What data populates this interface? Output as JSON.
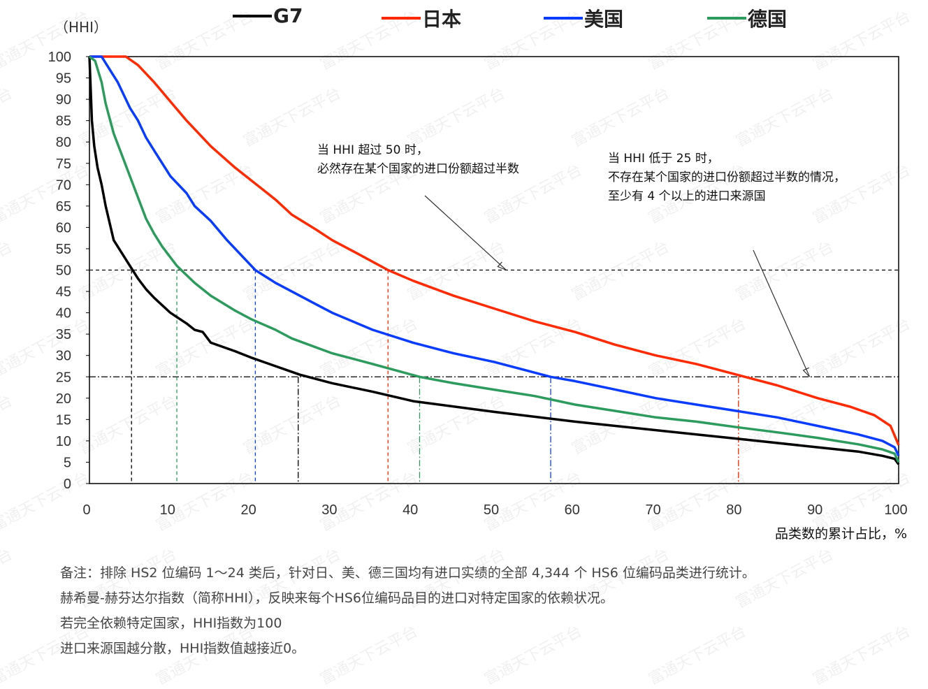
{
  "chart_data": {
    "type": "line",
    "ylabel": "（HHI）",
    "xlabel": "品类数的累计占比，%",
    "xlim": [
      0,
      100
    ],
    "ylim": [
      0,
      100
    ],
    "xticks": [
      0,
      10,
      20,
      30,
      40,
      50,
      60,
      70,
      80,
      90,
      100
    ],
    "yticks": [
      0,
      5,
      10,
      15,
      20,
      25,
      30,
      35,
      40,
      45,
      50,
      55,
      60,
      65,
      70,
      75,
      80,
      85,
      90,
      95,
      100
    ],
    "grid": false,
    "legend_position": "top",
    "series": [
      {
        "name": "G7",
        "color": "#000000",
        "x": [
          0,
          0.3,
          0.6,
          1,
          1.5,
          2,
          3,
          4,
          5,
          6,
          7,
          8,
          10,
          12,
          13,
          14,
          15,
          18,
          20,
          23,
          26,
          30,
          35,
          40,
          50,
          60,
          70,
          80,
          90,
          95,
          98,
          99.5,
          100
        ],
        "y": [
          100,
          85,
          79,
          74,
          70,
          65,
          57,
          54,
          51,
          48,
          45.5,
          43.5,
          40,
          37.5,
          36,
          35.5,
          33,
          31,
          29.5,
          27.5,
          25.5,
          23.5,
          21.5,
          19.3,
          16.8,
          14.5,
          12.5,
          10.5,
          8.5,
          7.5,
          6.5,
          5.8,
          4.5
        ]
      },
      {
        "name": "日本",
        "color": "#ff2a00",
        "x": [
          0,
          4.5,
          6,
          8,
          10,
          12,
          15,
          18,
          20,
          23,
          25,
          28,
          30,
          33,
          36.9,
          40,
          45,
          50,
          55,
          60,
          65,
          70,
          75,
          80,
          85,
          90,
          94,
          97,
          99,
          100
        ],
        "y": [
          100,
          100,
          98,
          94,
          89.5,
          85,
          79,
          74,
          71,
          66.5,
          63,
          59.5,
          57,
          54,
          50,
          47.5,
          44,
          41,
          38,
          35.5,
          32.5,
          30,
          28,
          25.5,
          23,
          20,
          18,
          16,
          13.5,
          9
        ]
      },
      {
        "name": "美国",
        "color": "#0a3cff",
        "x": [
          0,
          1.5,
          2.5,
          3.5,
          5,
          6,
          7,
          8,
          10,
          12,
          13,
          15,
          17,
          20.5,
          23,
          25,
          28,
          30,
          35,
          40,
          45,
          50,
          57,
          60,
          65,
          70,
          75,
          80,
          85,
          90,
          95,
          98,
          99.5,
          100
        ],
        "y": [
          100,
          100,
          97,
          94,
          88,
          85,
          81,
          78,
          72,
          68,
          65,
          61.5,
          57,
          50,
          47,
          45,
          42,
          40,
          36,
          33,
          30.5,
          28.5,
          25,
          24,
          22,
          20,
          18.5,
          17,
          15.5,
          13.5,
          11.5,
          10,
          8.5,
          6.5
        ]
      },
      {
        "name": "德国",
        "color": "#2e9b5e",
        "x": [
          0,
          0.7,
          1.5,
          2,
          3,
          4,
          5,
          6,
          7,
          8,
          9,
          10.8,
          13,
          15,
          18,
          20,
          23,
          25,
          30,
          35,
          40.8,
          45,
          50,
          55,
          60,
          65,
          70,
          75,
          80,
          85,
          90,
          95,
          98,
          99.5,
          100
        ],
        "y": [
          100,
          99,
          94,
          89,
          82,
          77,
          72,
          67,
          62,
          58.5,
          55.5,
          51,
          47,
          44,
          40.5,
          38.5,
          36,
          34,
          30.5,
          28,
          25,
          23.5,
          22,
          20.5,
          18.5,
          17,
          15.5,
          14.5,
          13.2,
          12,
          10.7,
          9.2,
          8,
          7,
          5
        ]
      }
    ],
    "reference_lines": [
      {
        "axis": "y",
        "value": 50,
        "style": "dashed"
      },
      {
        "axis": "y",
        "value": 25,
        "style": "dash-dot"
      }
    ],
    "crossing_markers": [
      {
        "series": "G7",
        "x": 5.2,
        "y": 50,
        "style": "dashed"
      },
      {
        "series": "德国",
        "x": 10.8,
        "y": 50,
        "style": "dashed"
      },
      {
        "series": "美国",
        "x": 20.5,
        "y": 50,
        "style": "dashed"
      },
      {
        "series": "日本",
        "x": 36.9,
        "y": 50,
        "style": "dashed"
      },
      {
        "series": "G7",
        "x": 25.8,
        "y": 25,
        "style": "dash-dot"
      },
      {
        "series": "德国",
        "x": 40.8,
        "y": 25,
        "style": "dash-dot"
      },
      {
        "series": "美国",
        "x": 57,
        "y": 25,
        "style": "dash-dot"
      },
      {
        "series": "日本",
        "x": 80.2,
        "y": 25,
        "style": "dash-dot"
      }
    ],
    "annotations": [
      {
        "lines": [
          "当 HHI 超过 50 时，",
          "必然存在某个国家的进口份额超过半数"
        ],
        "arrow_to": {
          "x": 51.5,
          "y": 50
        }
      },
      {
        "lines": [
          "当 HHI 低于 25 时，",
          "不存在某个国家的进口份额超过半数的情况，",
          "至少有 4 个以上的进口来源国"
        ],
        "arrow_to": {
          "x": 89,
          "y": 25
        }
      }
    ]
  },
  "notes": [
    "备注：排除 HS2 位编码 1～24 类后，针对日、美、德三国均有进口实绩的全部 4,344 个 HS6 位编码品类进行统计。",
    "赫希曼-赫芬达尔指数（简称HHI），反映来每个HS6位编码品目的进口对特定国家的依赖状况。",
    "若完全依赖特定国家，HHI指数为100",
    "进口来源国越分散，HHI指数值越接近0。"
  ],
  "watermark": "富通天下云平台"
}
